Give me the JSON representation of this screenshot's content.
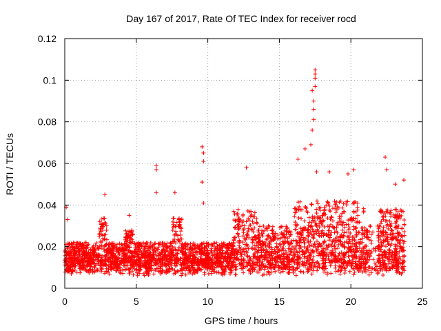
{
  "chart_data": {
    "type": "scatter",
    "title": "Day 167 of 2017, Rate Of TEC Index for receiver rocd",
    "xlabel": "GPS time / hours",
    "ylabel": "ROTI / TECUs",
    "xlim": [
      0,
      25
    ],
    "ylim": [
      0,
      0.12
    ],
    "xticks": [
      0,
      5,
      10,
      15,
      20,
      25
    ],
    "xtick_labels": [
      "0",
      "5",
      "10",
      "15",
      "20",
      "25"
    ],
    "yticks": [
      0,
      0.02,
      0.04,
      0.06,
      0.08,
      0.1,
      0.12
    ],
    "ytick_labels": [
      "0",
      "0.02",
      "0.04",
      "0.06",
      "0.08",
      "0.1",
      "0.12"
    ],
    "grid": true,
    "marker": "+",
    "series": [
      {
        "name": "ROTI",
        "color": "#ff0000",
        "envelope_note": "dense cloud of ROTI samples, typical range ~0.005-0.035 TECU, peaks listed below",
        "peaks": [
          {
            "x": 0.1,
            "y": 0.039
          },
          {
            "x": 0.2,
            "y": 0.033
          },
          {
            "x": 2.8,
            "y": 0.045
          },
          {
            "x": 4.5,
            "y": 0.035
          },
          {
            "x": 6.4,
            "y": 0.059
          },
          {
            "x": 6.4,
            "y": 0.057
          },
          {
            "x": 6.4,
            "y": 0.046
          },
          {
            "x": 7.7,
            "y": 0.046
          },
          {
            "x": 9.6,
            "y": 0.068
          },
          {
            "x": 9.7,
            "y": 0.065
          },
          {
            "x": 9.7,
            "y": 0.061
          },
          {
            "x": 9.6,
            "y": 0.051
          },
          {
            "x": 9.7,
            "y": 0.041
          },
          {
            "x": 12.7,
            "y": 0.058
          },
          {
            "x": 16.3,
            "y": 0.062
          },
          {
            "x": 16.8,
            "y": 0.067
          },
          {
            "x": 17.2,
            "y": 0.069
          },
          {
            "x": 17.3,
            "y": 0.076
          },
          {
            "x": 17.4,
            "y": 0.081
          },
          {
            "x": 17.4,
            "y": 0.086
          },
          {
            "x": 17.4,
            "y": 0.09
          },
          {
            "x": 17.3,
            "y": 0.095
          },
          {
            "x": 17.5,
            "y": 0.097
          },
          {
            "x": 17.5,
            "y": 0.101
          },
          {
            "x": 17.5,
            "y": 0.103
          },
          {
            "x": 17.5,
            "y": 0.105
          },
          {
            "x": 17.6,
            "y": 0.056
          },
          {
            "x": 18.5,
            "y": 0.056
          },
          {
            "x": 19.8,
            "y": 0.055
          },
          {
            "x": 20.2,
            "y": 0.057
          },
          {
            "x": 22.4,
            "y": 0.063
          },
          {
            "x": 22.5,
            "y": 0.057
          },
          {
            "x": 23.1,
            "y": 0.05
          },
          {
            "x": 23.7,
            "y": 0.052
          }
        ]
      }
    ]
  }
}
